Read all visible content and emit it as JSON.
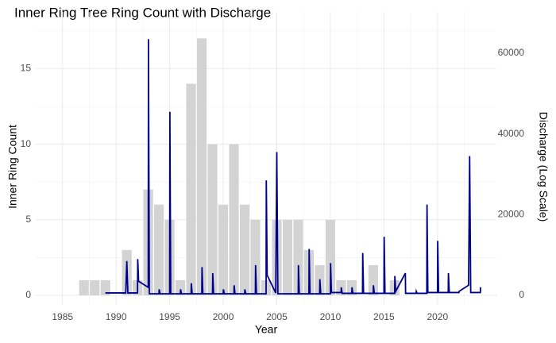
{
  "chart_data": {
    "type": "bar+line",
    "title": "Inner Ring Tree Ring Count with Discharge",
    "x_label": "Year",
    "y_label": "Inner Ring Count",
    "y2_label": "Discharge (Log Scale)",
    "xlim": [
      1982.5,
      2025.5
    ],
    "xticks": [
      1985,
      1990,
      1995,
      2000,
      2005,
      2010,
      2015,
      2020
    ],
    "ylim": [
      0,
      17.7
    ],
    "yticks": [
      0,
      5,
      10,
      15
    ],
    "y2lim": [
      0,
      66300
    ],
    "y2ticks": [
      0,
      20000,
      40000,
      60000
    ],
    "grid": true,
    "series": [
      {
        "type": "bar",
        "color": "#d3d3d3",
        "x": [
          1987,
          1988,
          1989,
          1991,
          1992,
          1993,
          1994,
          1995,
          1996,
          1997,
          1998,
          1999,
          2000,
          2001,
          2002,
          2003,
          2004,
          2005,
          2006,
          2007,
          2008,
          2009,
          2010,
          2011,
          2012,
          2014,
          2016
        ],
        "values": [
          1,
          1,
          1,
          3,
          1,
          7,
          6,
          5,
          1,
          14,
          17,
          10,
          6,
          10,
          6,
          5,
          1,
          5,
          5,
          5,
          3,
          2,
          5,
          1,
          1,
          2,
          1
        ]
      },
      {
        "type": "line",
        "color": "#00008b",
        "axis": "y2",
        "x": [
          1989,
          1990.9,
          1991,
          1991.1,
          1992,
          1992.02,
          1992.1,
          1993,
          1993.02,
          1993.1,
          1994,
          1994.02,
          1994.1,
          1995,
          1995.02,
          1995.1,
          1996,
          1996.02,
          1996.1,
          1997,
          1997.02,
          1997.1,
          1998,
          1998.02,
          1998.1,
          1999,
          1999.02,
          1999.1,
          2000,
          2000.02,
          2000.1,
          2001,
          2001.02,
          2001.1,
          2002,
          2002.02,
          2002.1,
          2003,
          2003.02,
          2003.1,
          2004,
          2004.02,
          2004.1,
          2004.9,
          2005,
          2005.1,
          2007,
          2007.02,
          2007.1,
          2008,
          2008.02,
          2008.1,
          2009,
          2009.02,
          2009.1,
          2010,
          2010.02,
          2010.1,
          2011,
          2011.02,
          2011.1,
          2012,
          2012.02,
          2012.1,
          2013,
          2013.02,
          2013.1,
          2014,
          2014.02,
          2014.1,
          2015,
          2015.02,
          2015.1,
          2016,
          2016.02,
          2016.1,
          2017,
          2017.02,
          2017.1,
          2018,
          2018.02,
          2018.1,
          2019,
          2019.02,
          2019.1,
          2020,
          2020.02,
          2020.1,
          2021,
          2021.02,
          2021.1,
          2022,
          2022.02,
          2022.9,
          2023,
          2023.1,
          2024,
          2024.02
        ],
        "values": [
          600,
          600,
          8500,
          600,
          600,
          9000,
          3500,
          2000,
          63500,
          400,
          400,
          1500,
          400,
          400,
          45500,
          400,
          400,
          1500,
          400,
          400,
          3000,
          400,
          400,
          7000,
          400,
          400,
          5500,
          400,
          400,
          1500,
          400,
          400,
          2500,
          400,
          400,
          1500,
          400,
          400,
          7500,
          400,
          400,
          28500,
          5000,
          600,
          35500,
          400,
          400,
          7500,
          400,
          400,
          11500,
          400,
          400,
          4000,
          400,
          400,
          8000,
          700,
          700,
          2000,
          500,
          500,
          2000,
          500,
          500,
          10500,
          500,
          500,
          2500,
          500,
          500,
          14500,
          500,
          500,
          4800,
          1000,
          5500,
          500,
          500,
          500,
          1000,
          500,
          500,
          22500,
          700,
          700,
          13500,
          700,
          700,
          5500,
          700,
          700,
          1000,
          2500,
          34500,
          700,
          700,
          2000
        ]
      }
    ]
  }
}
